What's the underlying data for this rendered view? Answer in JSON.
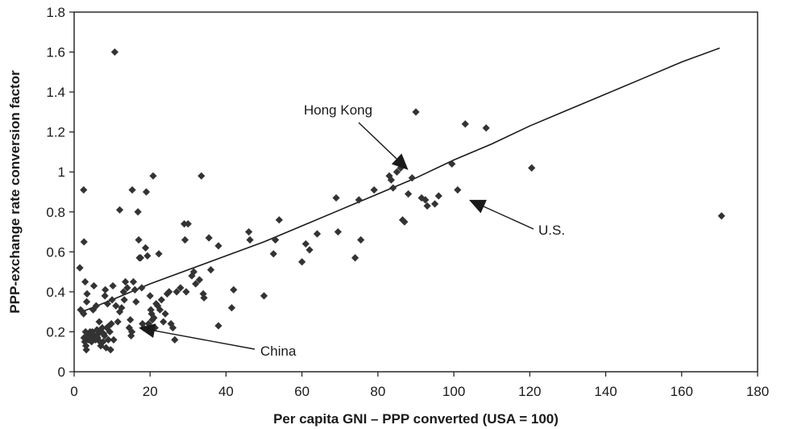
{
  "chart_data": {
    "type": "scatter",
    "title": "",
    "xlabel": "Per capita GNI – PPP converted (USA = 100)",
    "ylabel": "PPP-exchange rate conversion factor",
    "xlim": [
      0,
      180
    ],
    "ylim": [
      0,
      1.8
    ],
    "xticks": [
      0,
      20,
      40,
      60,
      80,
      100,
      120,
      140,
      160,
      180
    ],
    "xtick_labels": [
      "0",
      "20",
      "40",
      "60",
      "80",
      "100",
      "120",
      "140",
      "160",
      "180"
    ],
    "yticks": [
      0,
      0.2,
      0.4,
      0.6,
      0.8,
      1,
      1.2,
      1.4,
      1.6,
      1.8
    ],
    "ytick_labels": [
      "0",
      "0.2",
      "0.4",
      "0.6",
      "0.8",
      "1",
      "1.2",
      "1.4",
      "1.6",
      "1.8"
    ],
    "grid": false,
    "legend": "none",
    "marker_color": "#333333",
    "trend_line": {
      "x": [
        2,
        10,
        20,
        30,
        40,
        50,
        60,
        70,
        80,
        90,
        100,
        110,
        120,
        130,
        140,
        150,
        160,
        170
      ],
      "y": [
        0.3,
        0.36,
        0.44,
        0.51,
        0.58,
        0.65,
        0.73,
        0.81,
        0.89,
        0.97,
        1.06,
        1.14,
        1.23,
        1.31,
        1.39,
        1.47,
        1.55,
        1.62
      ]
    },
    "points": [
      [
        1.5,
        0.52
      ],
      [
        1.7,
        0.31
      ],
      [
        2.2,
        0.3
      ],
      [
        2.5,
        0.29
      ],
      [
        2.6,
        0.17
      ],
      [
        2.8,
        0.15
      ],
      [
        2.9,
        0.45
      ],
      [
        2.5,
        0.91
      ],
      [
        2.6,
        0.65
      ],
      [
        3.0,
        0.2
      ],
      [
        3.1,
        0.13
      ],
      [
        3.2,
        0.11
      ],
      [
        3.3,
        0.35
      ],
      [
        3.4,
        0.39
      ],
      [
        3.6,
        0.18
      ],
      [
        3.8,
        0.16
      ],
      [
        4.0,
        0.19
      ],
      [
        4.2,
        0.2
      ],
      [
        4.4,
        0.17
      ],
      [
        4.6,
        0.15
      ],
      [
        4.8,
        0.2
      ],
      [
        5.0,
        0.31
      ],
      [
        5.2,
        0.43
      ],
      [
        5.4,
        0.18
      ],
      [
        5.6,
        0.16
      ],
      [
        5.8,
        0.33
      ],
      [
        6.0,
        0.21
      ],
      [
        6.2,
        0.17
      ],
      [
        6.4,
        0.19
      ],
      [
        6.6,
        0.25
      ],
      [
        6.8,
        0.15
      ],
      [
        7.0,
        0.13
      ],
      [
        7.2,
        0.2
      ],
      [
        7.4,
        0.22
      ],
      [
        7.6,
        0.15
      ],
      [
        7.8,
        0.19
      ],
      [
        8.0,
        0.18
      ],
      [
        8.1,
        0.38
      ],
      [
        8.2,
        0.41
      ],
      [
        8.4,
        0.12
      ],
      [
        8.6,
        0.22
      ],
      [
        8.8,
        0.34
      ],
      [
        9.0,
        0.16
      ],
      [
        9.2,
        0.23
      ],
      [
        9.4,
        0.2
      ],
      [
        9.6,
        0.11
      ],
      [
        9.8,
        0.24
      ],
      [
        10.0,
        0.36
      ],
      [
        10.2,
        0.43
      ],
      [
        10.4,
        0.16
      ],
      [
        10.7,
        1.6
      ],
      [
        11.0,
        0.33
      ],
      [
        11.5,
        0.25
      ],
      [
        12.0,
        0.3
      ],
      [
        12.0,
        0.81
      ],
      [
        12.5,
        0.32
      ],
      [
        13.0,
        0.4
      ],
      [
        13.2,
        0.36
      ],
      [
        13.5,
        0.45
      ],
      [
        14.0,
        0.42
      ],
      [
        14.5,
        0.22
      ],
      [
        14.8,
        0.26
      ],
      [
        15.0,
        0.18
      ],
      [
        15.2,
        0.2
      ],
      [
        15.3,
        0.91
      ],
      [
        15.6,
        0.45
      ],
      [
        16.0,
        0.41
      ],
      [
        16.3,
        0.35
      ],
      [
        16.8,
        0.8
      ],
      [
        17.0,
        0.66
      ],
      [
        17.2,
        0.57
      ],
      [
        17.5,
        0.57
      ],
      [
        17.8,
        0.42
      ],
      [
        18.0,
        0.24
      ],
      [
        18.3,
        0.22
      ],
      [
        18.8,
        0.62
      ],
      [
        19.0,
        0.9
      ],
      [
        19.3,
        0.58
      ],
      [
        19.6,
        0.24
      ],
      [
        20.0,
        0.38
      ],
      [
        20.2,
        0.31
      ],
      [
        20.4,
        0.29
      ],
      [
        20.6,
        0.26
      ],
      [
        20.8,
        0.98
      ],
      [
        21.0,
        0.27
      ],
      [
        21.3,
        0.22
      ],
      [
        21.6,
        0.34
      ],
      [
        22.0,
        0.33
      ],
      [
        22.3,
        0.59
      ],
      [
        22.6,
        0.31
      ],
      [
        23.0,
        0.36
      ],
      [
        23.5,
        0.25
      ],
      [
        24.0,
        0.29
      ],
      [
        24.5,
        0.39
      ],
      [
        25.0,
        0.4
      ],
      [
        25.5,
        0.24
      ],
      [
        26.0,
        0.22
      ],
      [
        26.5,
        0.16
      ],
      [
        27.0,
        0.4
      ],
      [
        28.0,
        0.42
      ],
      [
        29.0,
        0.74
      ],
      [
        29.2,
        0.66
      ],
      [
        29.5,
        0.4
      ],
      [
        30.0,
        0.74
      ],
      [
        31.0,
        0.48
      ],
      [
        31.5,
        0.5
      ],
      [
        32.0,
        0.44
      ],
      [
        33.0,
        0.46
      ],
      [
        33.5,
        0.98
      ],
      [
        34.0,
        0.39
      ],
      [
        34.2,
        0.37
      ],
      [
        35.5,
        0.67
      ],
      [
        36.0,
        0.51
      ],
      [
        38.0,
        0.63
      ],
      [
        38.0,
        0.23
      ],
      [
        41.5,
        0.32
      ],
      [
        42.0,
        0.41
      ],
      [
        46.0,
        0.7
      ],
      [
        46.3,
        0.66
      ],
      [
        50.0,
        0.38
      ],
      [
        52.5,
        0.59
      ],
      [
        53.0,
        0.66
      ],
      [
        54.0,
        0.76
      ],
      [
        60.0,
        0.55
      ],
      [
        61.0,
        0.64
      ],
      [
        62.0,
        0.61
      ],
      [
        64.0,
        0.69
      ],
      [
        69.0,
        0.87
      ],
      [
        69.5,
        0.7
      ],
      [
        74.0,
        0.57
      ],
      [
        75.0,
        0.86
      ],
      [
        75.5,
        0.66
      ],
      [
        79.0,
        0.91
      ],
      [
        83.0,
        0.98
      ],
      [
        83.5,
        0.96
      ],
      [
        84.0,
        0.92
      ],
      [
        85.0,
        1.0
      ],
      [
        86.0,
        1.02
      ],
      [
        86.5,
        0.76
      ],
      [
        87.0,
        0.75
      ],
      [
        88.0,
        0.89
      ],
      [
        89.0,
        0.97
      ],
      [
        90.0,
        1.3
      ],
      [
        91.5,
        0.87
      ],
      [
        92.5,
        0.86
      ],
      [
        93.0,
        0.83
      ],
      [
        95.0,
        0.84
      ],
      [
        96.0,
        0.88
      ],
      [
        99.5,
        1.04
      ],
      [
        101.0,
        0.91
      ],
      [
        103.0,
        1.24
      ],
      [
        108.5,
        1.22
      ],
      [
        120.5,
        1.02
      ],
      [
        170.5,
        0.78
      ]
    ],
    "annotations": [
      {
        "text": "Hong Kong",
        "arrow_to": [
          88,
          1.01
        ]
      },
      {
        "text": "U.S.",
        "arrow_to": [
          104,
          0.86
        ]
      },
      {
        "text": "China",
        "arrow_to": [
          17,
          0.22
        ]
      }
    ]
  }
}
